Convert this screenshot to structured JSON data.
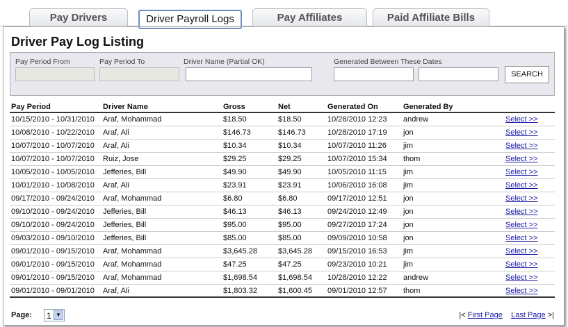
{
  "tabs": [
    "Pay Drivers",
    "Driver Payroll Logs",
    "Pay Affiliates",
    "Paid Affiliate Bills"
  ],
  "heading": "Driver Pay Log Listing",
  "filters": {
    "labels": [
      "Pay Period From",
      "Pay Period To",
      "Driver Name (Partial OK)",
      "Generated Between These Dates"
    ],
    "button": "SEARCH"
  },
  "table": {
    "columns": [
      "Pay Period",
      "Driver Name",
      "Gross",
      "Net",
      "Generated On",
      "Generated By"
    ],
    "rows": [
      [
        "10/15/2010 - 10/31/2010",
        "Araf, Mohammad",
        "$18.50",
        "$18.50",
        "10/28/2010 12:23",
        "andrew",
        "Select >>"
      ],
      [
        "10/08/2010 - 10/22/2010",
        "Araf, Ali",
        "$146.73",
        "$146.73",
        "10/28/2010 17:19",
        "jon",
        "Select >>"
      ],
      [
        "10/07/2010 - 10/07/2010",
        "Araf, Ali",
        "$10.34",
        "$10.34",
        "10/07/2010 11:26",
        "jim",
        "Select >>"
      ],
      [
        "10/07/2010 - 10/07/2010",
        "Ruiz, Jose",
        "$29.25",
        "$29.25",
        "10/07/2010 15:34",
        "thom",
        "Select >>"
      ],
      [
        "10/05/2010 - 10/05/2010",
        "Jefferies, Bill",
        "$49.90",
        "$49.90",
        "10/05/2010 11:15",
        "jim",
        "Select >>"
      ],
      [
        "10/01/2010 - 10/08/2010",
        "Araf, Ali",
        "$23.91",
        "$23.91",
        "10/06/2010 16:08",
        "jim",
        "Select >>"
      ],
      [
        "09/17/2010 - 09/24/2010",
        "Araf, Mohammad",
        "$6.80",
        "$6.80",
        "09/17/2010 12:51",
        "jon",
        "Select >>"
      ],
      [
        "09/10/2010 - 09/24/2010",
        "Jefferies, Bill",
        "$46.13",
        "$46.13",
        "09/24/2010 12:49",
        "jon",
        "Select >>"
      ],
      [
        "09/10/2010 - 09/24/2010",
        "Jefferies, Bill",
        "$95.00",
        "$95.00",
        "09/27/2010 17:24",
        "jon",
        "Select >>"
      ],
      [
        "09/03/2010 - 09/10/2010",
        "Jefferies, Bill",
        "$85.00",
        "$85.00",
        "09/09/2010 10:58",
        "jon",
        "Select >>"
      ],
      [
        "09/01/2010 - 09/15/2010",
        "Araf, Mohammad",
        "$3,645.28",
        "$3,645.28",
        "09/15/2010 16:53",
        "jim",
        "Select >>"
      ],
      [
        "09/01/2010 - 09/15/2010",
        "Araf, Mohammad",
        "$47.25",
        "$47.25",
        "09/23/2010 10:21",
        "jim",
        "Select >>"
      ],
      [
        "09/01/2010 - 09/15/2010",
        "Araf, Mohammad",
        "$1,698.54",
        "$1,698.54",
        "10/28/2010 12:22",
        "andrew",
        "Select >>"
      ],
      [
        "09/01/2010 - 09/01/2010",
        "Araf, Ali",
        "$1,803.32",
        "$1,600.45",
        "09/01/2010 12:57",
        "thom",
        "Select >>"
      ]
    ]
  },
  "pager": {
    "label": "Page:",
    "page": "1",
    "first_prefix": "|<",
    "first": "First Page",
    "last": "Last Page",
    "last_suffix": ">|"
  }
}
